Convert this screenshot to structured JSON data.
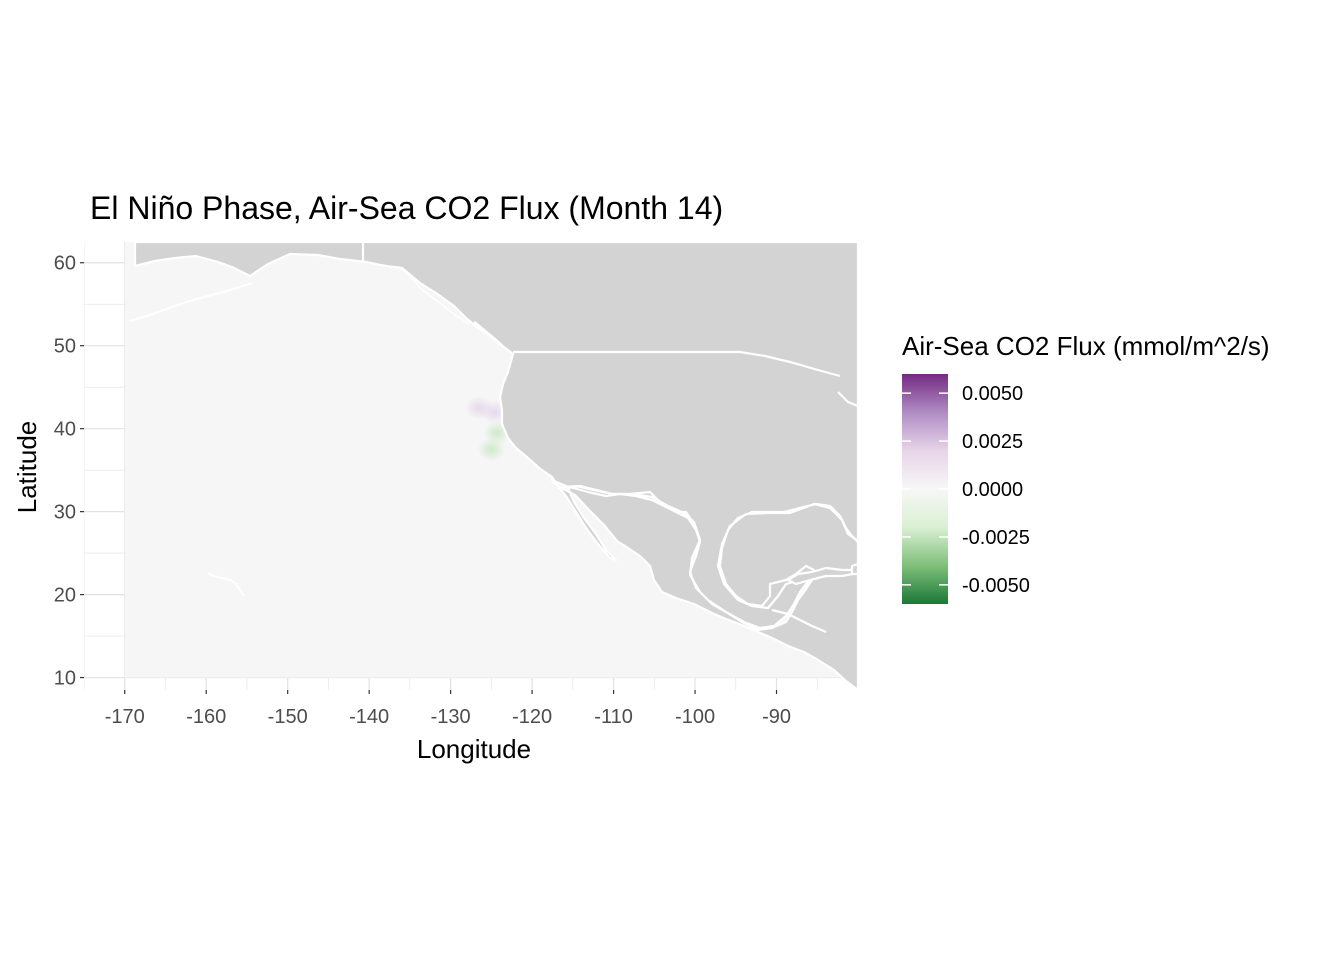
{
  "chart_data": {
    "type": "heatmap",
    "title": "El Niño Phase, Air-Sea CO2 Flux (Month 14)",
    "xlabel": "Longitude",
    "ylabel": "Latitude",
    "xlim": [
      -175,
      -80
    ],
    "ylim": [
      8.5,
      62.5
    ],
    "x_ticks": [
      -170,
      -160,
      -150,
      -140,
      -130,
      -120,
      -110,
      -100,
      -90
    ],
    "x_tick_labels": [
      "-170",
      "-160",
      "-150",
      "-140",
      "-130",
      "-120",
      "-110",
      "-100",
      "-90"
    ],
    "y_ticks": [
      10,
      20,
      30,
      40,
      50,
      60
    ],
    "y_tick_labels": [
      "10",
      "20",
      "30",
      "40",
      "50",
      "60"
    ],
    "grid": true,
    "land_color": "#d3d3d3",
    "ocean_base_value": 0.0,
    "highlights": [
      {
        "lon": -124.6,
        "lat": 42.0,
        "value": 0.0006
      },
      {
        "lon": -126.5,
        "lat": 42.5,
        "value": 0.0004
      },
      {
        "lon": -124.3,
        "lat": 39.5,
        "value": -0.0012
      },
      {
        "lon": -125.0,
        "lat": 37.5,
        "value": -0.0006
      }
    ],
    "legend": {
      "title": "Air-Sea CO2 Flux (mmol/m^2/s)",
      "position": "right",
      "min": -0.006,
      "max": 0.006,
      "breaks": [
        0.005,
        0.0025,
        0.0,
        -0.0025,
        -0.005
      ],
      "labels": [
        "0.0050",
        "0.0025",
        "0.0000",
        "-0.0025",
        "-0.0050"
      ],
      "colors": [
        "#762a83",
        "#af8dc3",
        "#e7d4e8",
        "#f7f7f7",
        "#d9f0d3",
        "#7fbf7b",
        "#1b7837"
      ]
    }
  }
}
